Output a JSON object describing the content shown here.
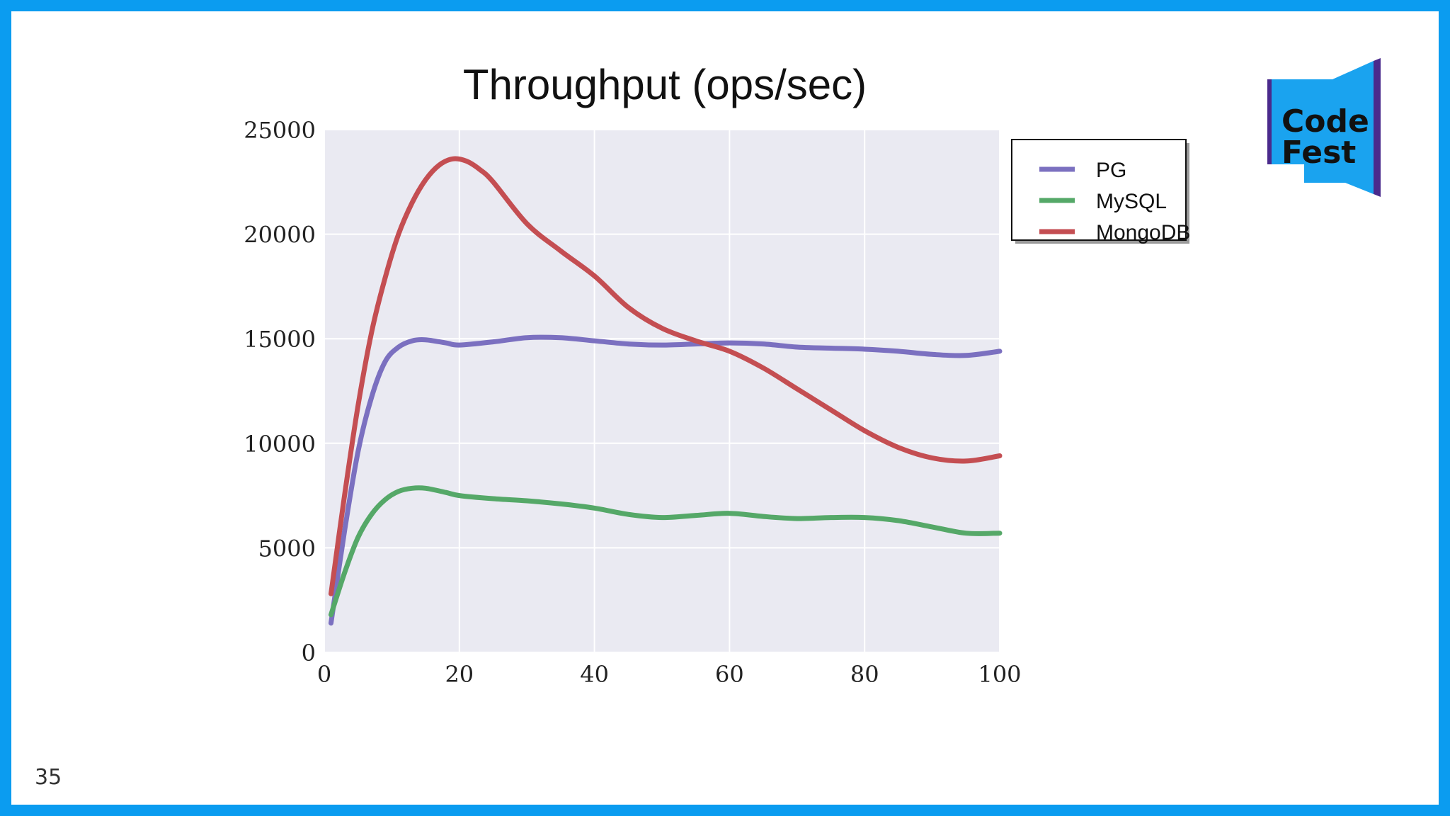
{
  "slide": {
    "number": "35"
  },
  "logo": {
    "text_line1": "Code",
    "text_line2": "Fest",
    "color_main": "#1aa3ef",
    "color_dark": "#4a2a8c"
  },
  "chart_data": {
    "type": "line",
    "title": "Throughput (ops/sec)",
    "xlabel": "",
    "ylabel": "",
    "xlim": [
      0,
      100
    ],
    "ylim": [
      0,
      25000
    ],
    "xticks": [
      "0",
      "20",
      "40",
      "60",
      "80",
      "100"
    ],
    "yticks": [
      "0",
      "5000",
      "10000",
      "15000",
      "20000",
      "25000"
    ],
    "grid": true,
    "legend_position": "top-right, outside plot",
    "series": [
      {
        "name": "PG",
        "color": "#7b70c0",
        "x": [
          1,
          3,
          5,
          7,
          9,
          11,
          13,
          15,
          18,
          20,
          25,
          30,
          35,
          40,
          45,
          50,
          55,
          60,
          65,
          70,
          75,
          80,
          85,
          90,
          95,
          100
        ],
        "y": [
          1400,
          5800,
          9600,
          12200,
          13900,
          14600,
          14900,
          14950,
          14800,
          14700,
          14850,
          15050,
          15050,
          14900,
          14750,
          14700,
          14750,
          14800,
          14750,
          14600,
          14550,
          14500,
          14400,
          14250,
          14200,
          14400
        ]
      },
      {
        "name": "MySQL",
        "color": "#55a868",
        "x": [
          1,
          3,
          5,
          7,
          9,
          11,
          13,
          15,
          18,
          20,
          25,
          30,
          35,
          40,
          45,
          50,
          55,
          60,
          65,
          70,
          75,
          80,
          85,
          90,
          95,
          100
        ],
        "y": [
          1800,
          3800,
          5500,
          6600,
          7300,
          7700,
          7850,
          7850,
          7650,
          7500,
          7350,
          7250,
          7100,
          6900,
          6600,
          6450,
          6550,
          6650,
          6500,
          6400,
          6450,
          6450,
          6300,
          6000,
          5700,
          5700
        ]
      },
      {
        "name": "MongoDB",
        "color": "#c44e52",
        "x": [
          1,
          3,
          5,
          7,
          9,
          11,
          13,
          15,
          17,
          19,
          21,
          23,
          25,
          30,
          35,
          40,
          45,
          50,
          55,
          60,
          65,
          70,
          75,
          80,
          85,
          90,
          95,
          100
        ],
        "y": [
          2800,
          7500,
          11800,
          15300,
          17900,
          20000,
          21500,
          22600,
          23300,
          23600,
          23500,
          23100,
          22500,
          20500,
          19200,
          18000,
          16500,
          15500,
          14900,
          14400,
          13600,
          12600,
          11600,
          10600,
          9800,
          9300,
          9150,
          9400
        ]
      }
    ]
  }
}
